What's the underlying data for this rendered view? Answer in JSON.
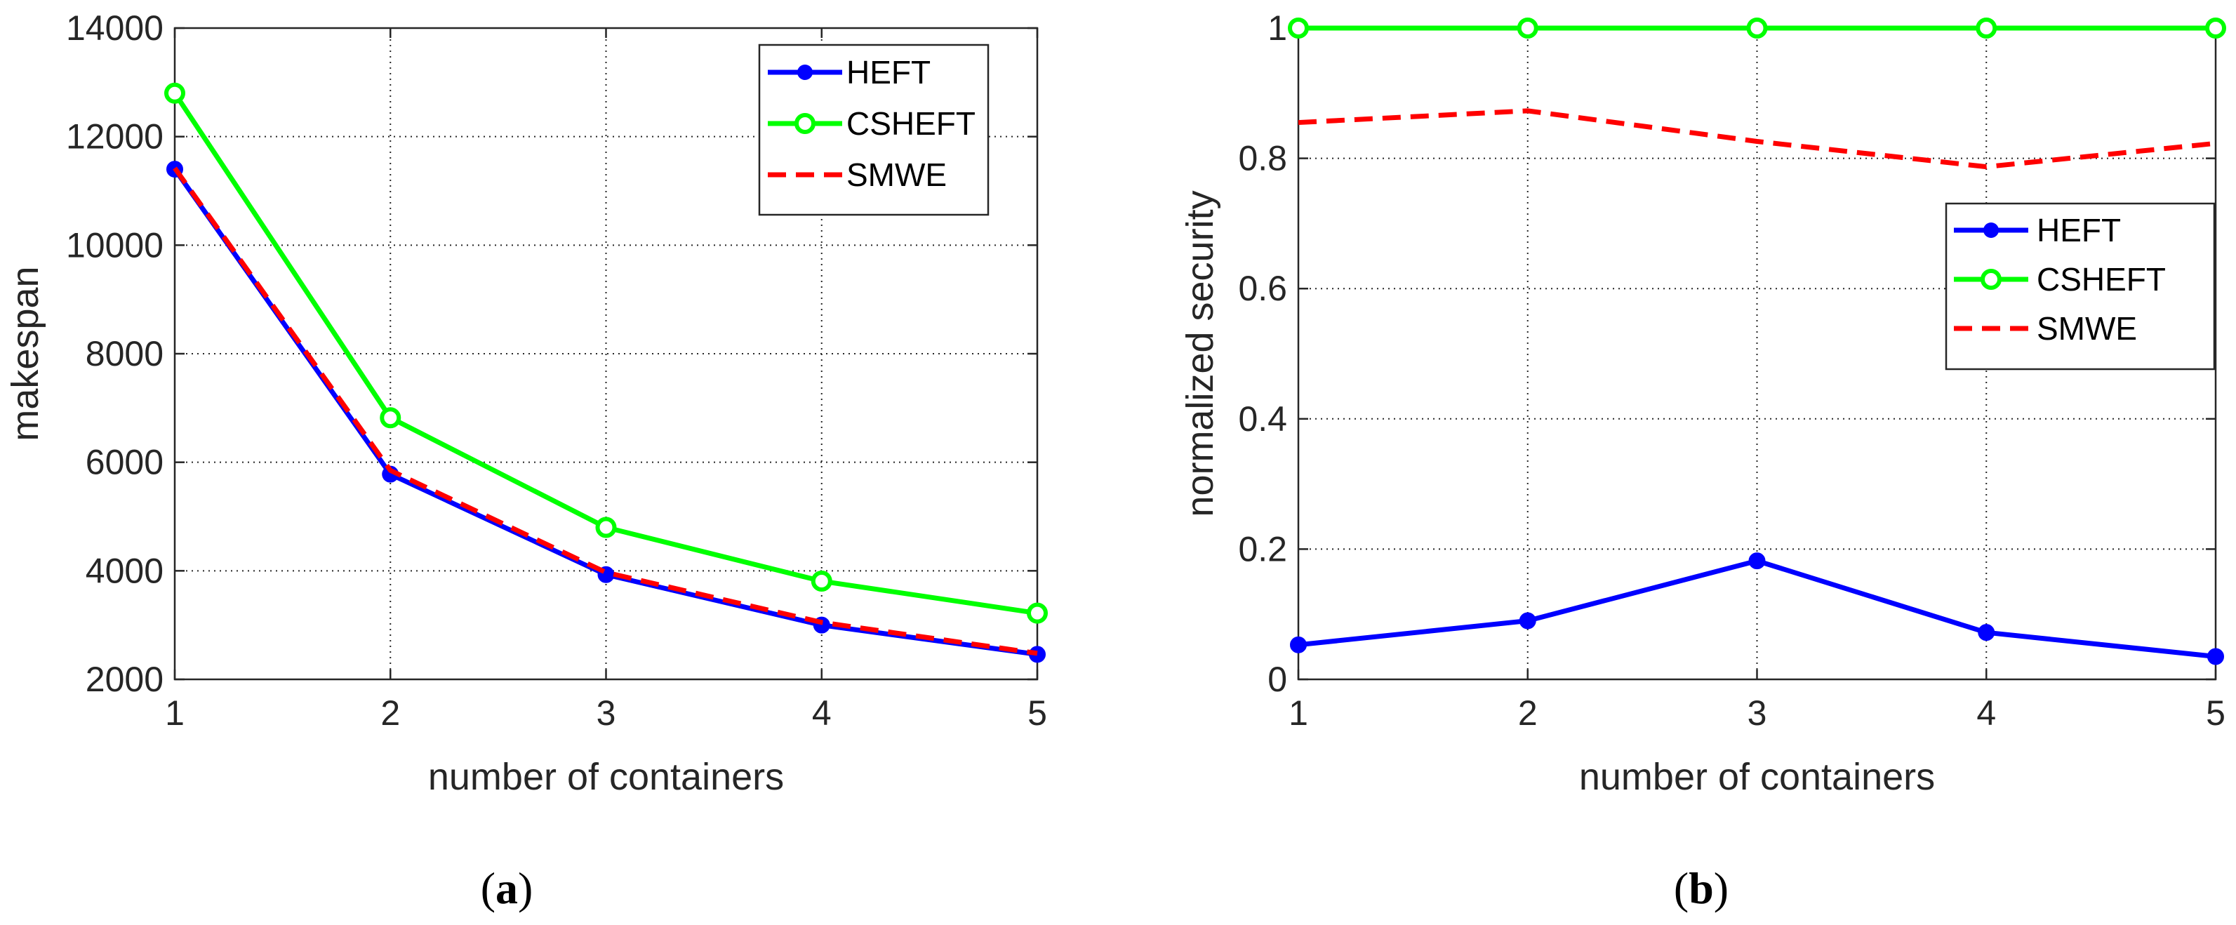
{
  "chart_data": [
    {
      "type": "line",
      "caption": "(a)",
      "caption_letter": "a",
      "title": "",
      "xlabel": "number of containers",
      "ylabel": "makespan",
      "x": [
        1,
        2,
        3,
        4,
        5
      ],
      "xlim": [
        1,
        5
      ],
      "ylim": [
        2000,
        14000
      ],
      "xticks": [
        1,
        2,
        3,
        4,
        5
      ],
      "yticks": [
        2000,
        4000,
        6000,
        8000,
        10000,
        12000,
        14000
      ],
      "grid": "dotted",
      "legend_position": "top-right",
      "series": [
        {
          "name": "HEFT",
          "color": "#0000ff",
          "style": "solid",
          "marker": "filled-circle",
          "values": [
            11400,
            5780,
            3930,
            3000,
            2460
          ]
        },
        {
          "name": "CSHEFT",
          "color": "#00ff00",
          "style": "solid",
          "marker": "open-circle",
          "values": [
            12800,
            6820,
            4800,
            3810,
            3220
          ]
        },
        {
          "name": "SMWE",
          "color": "#ff0000",
          "style": "dashed",
          "marker": "none",
          "values": [
            11420,
            5850,
            3970,
            3050,
            2480
          ]
        }
      ]
    },
    {
      "type": "line",
      "caption": "(b)",
      "caption_letter": "b",
      "title": "",
      "xlabel": "number of containers",
      "ylabel": "normalized security",
      "x": [
        1,
        2,
        3,
        4,
        5
      ],
      "xlim": [
        1,
        5
      ],
      "ylim": [
        0,
        1
      ],
      "xticks": [
        1,
        2,
        3,
        4,
        5
      ],
      "yticks": [
        0,
        0.2,
        0.4,
        0.6,
        0.8,
        1
      ],
      "grid": "dotted",
      "legend_position": "right",
      "series": [
        {
          "name": "HEFT",
          "color": "#0000ff",
          "style": "solid",
          "marker": "filled-circle",
          "values": [
            0.053,
            0.09,
            0.182,
            0.072,
            0.035
          ]
        },
        {
          "name": "CSHEFT",
          "color": "#00ff00",
          "style": "solid",
          "marker": "open-circle",
          "values": [
            1.0,
            1.0,
            1.0,
            1.0,
            1.0
          ]
        },
        {
          "name": "SMWE",
          "color": "#ff0000",
          "style": "dashed",
          "marker": "none",
          "values": [
            0.855,
            0.873,
            0.826,
            0.787,
            0.823
          ]
        }
      ]
    }
  ]
}
